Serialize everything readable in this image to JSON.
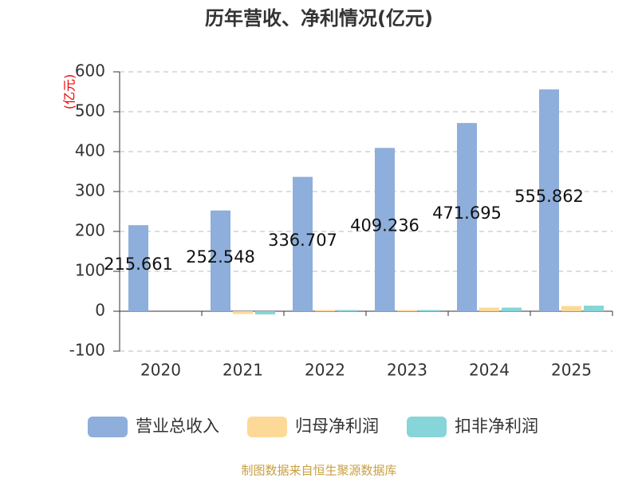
{
  "chart_data": {
    "type": "bar",
    "title": "历年营收、净利情况(亿元)",
    "y_label": "(亿元)",
    "categories": [
      "2020",
      "2021",
      "2022",
      "2023",
      "2024",
      "2025"
    ],
    "series": [
      {
        "name": "营业总收入",
        "color": "#8eaedb",
        "values": [
          215.661,
          252.548,
          336.707,
          409.236,
          471.695,
          555.862
        ]
      },
      {
        "name": "归母净利润",
        "color": "#fdd998",
        "values": [
          null,
          -7,
          3,
          3,
          9,
          13
        ]
      },
      {
        "name": "扣非净利润",
        "color": "#86d5d8",
        "values": [
          null,
          -8,
          3,
          3,
          9,
          14
        ]
      }
    ],
    "ylim": [
      -100,
      600
    ],
    "yticks": [
      -100,
      0,
      100,
      200,
      300,
      400,
      500,
      600
    ],
    "grid": true,
    "source": "制图数据来自恒生聚源数据库"
  }
}
